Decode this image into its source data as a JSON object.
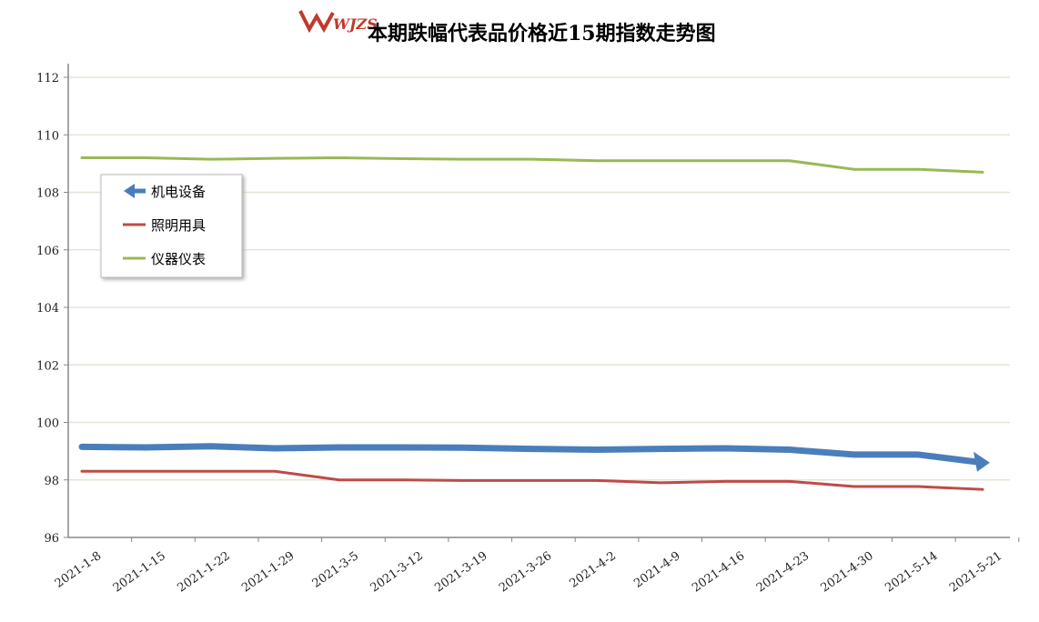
{
  "logo_text": "WJZS",
  "chart_data": {
    "type": "line",
    "title": "本期跌幅代表品价格近15期指数走势图",
    "xlabel": "",
    "ylabel": "",
    "ylim": [
      96,
      112
    ],
    "yticks": [
      96,
      98,
      100,
      102,
      104,
      106,
      108,
      110,
      112
    ],
    "grid": true,
    "legend_position": "left",
    "categories": [
      "2021-1-8",
      "2021-1-15",
      "2021-1-22",
      "2021-1-29",
      "2021-3-5",
      "2021-3-12",
      "2021-3-19",
      "2021-3-26",
      "2021-4-2",
      "2021-4-9",
      "2021-4-16",
      "2021-4-23",
      "2021-4-30",
      "2021-5-14",
      "2021-5-21"
    ],
    "series": [
      {
        "name": "机电设备",
        "color": "#4a7ebb",
        "values": [
          99.15,
          99.13,
          99.17,
          99.1,
          99.13,
          99.13,
          99.12,
          99.08,
          99.05,
          99.08,
          99.1,
          99.05,
          98.88,
          98.88,
          98.6
        ]
      },
      {
        "name": "照明用具",
        "color": "#be4b48",
        "values": [
          98.3,
          98.3,
          98.3,
          98.3,
          98.0,
          98.0,
          97.98,
          97.98,
          97.98,
          97.9,
          97.95,
          97.95,
          97.77,
          97.77,
          97.67
        ]
      },
      {
        "name": "仪器仪表",
        "color": "#98b954",
        "values": [
          109.2,
          109.2,
          109.15,
          109.18,
          109.2,
          109.17,
          109.15,
          109.15,
          109.1,
          109.1,
          109.1,
          109.1,
          108.8,
          108.8,
          108.7
        ]
      }
    ]
  }
}
